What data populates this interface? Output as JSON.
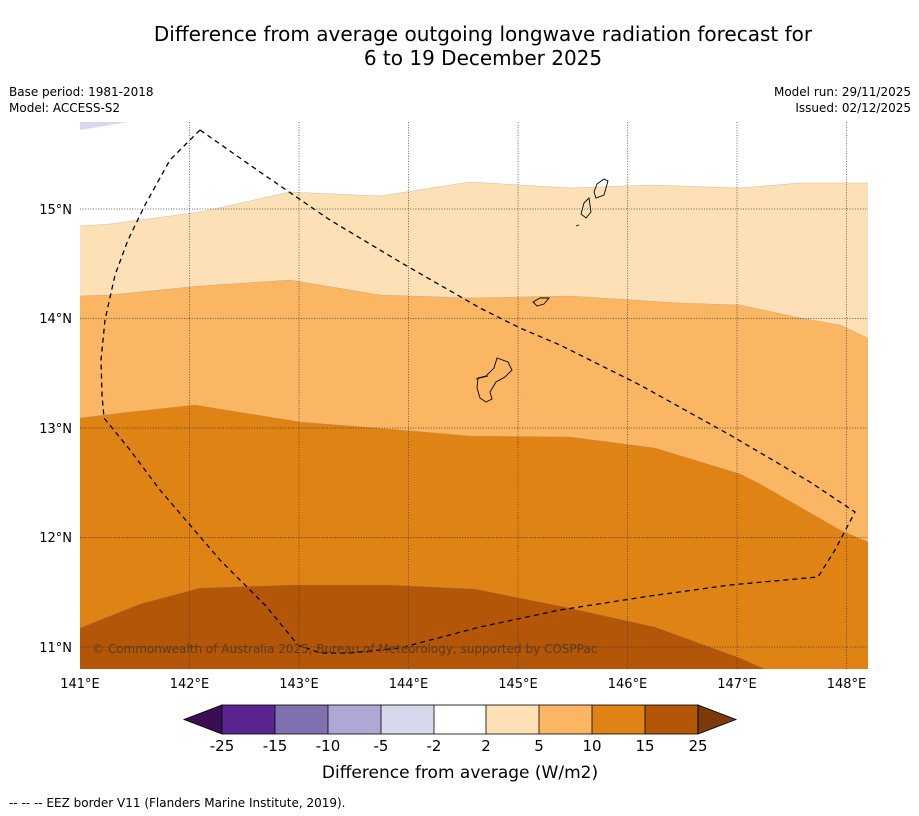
{
  "title_line1": "Difference from average outgoing longwave radiation forecast for",
  "title_line2": "6 to 19 December 2025",
  "meta": {
    "base_period": "Base period: 1981-2018",
    "model": "Model: ACCESS-S2",
    "model_run": "Model run: 29/11/2025",
    "issued": "Issued: 02/12/2025"
  },
  "map": {
    "lon_labels": [
      "141°E",
      "142°E",
      "143°E",
      "144°E",
      "145°E",
      "146°E",
      "147°E",
      "148°E"
    ],
    "lat_labels": [
      "15°N",
      "14°N",
      "13°N",
      "12°N",
      "11°N"
    ],
    "copyright": "© Commonwealth of Australia 2025, Bureau of Meteorology, supported by COSPPac"
  },
  "legend": {
    "ticks": [
      "-25",
      "-15",
      "-10",
      "-5",
      "-2",
      "2",
      "5",
      "10",
      "15",
      "25"
    ],
    "label": "Difference from average (W/m2)",
    "colors": [
      "#3b0d52",
      "#5a2590",
      "#8070b0",
      "#b0a8d4",
      "#d8d8ec",
      "#ffffff",
      "#fde0b6",
      "#fbb663",
      "#e08315",
      "#b45608",
      "#7a3a09"
    ]
  },
  "footnote": "--  --  -- EEZ border V11 (Flanders Marine Institute, 2019)."
}
